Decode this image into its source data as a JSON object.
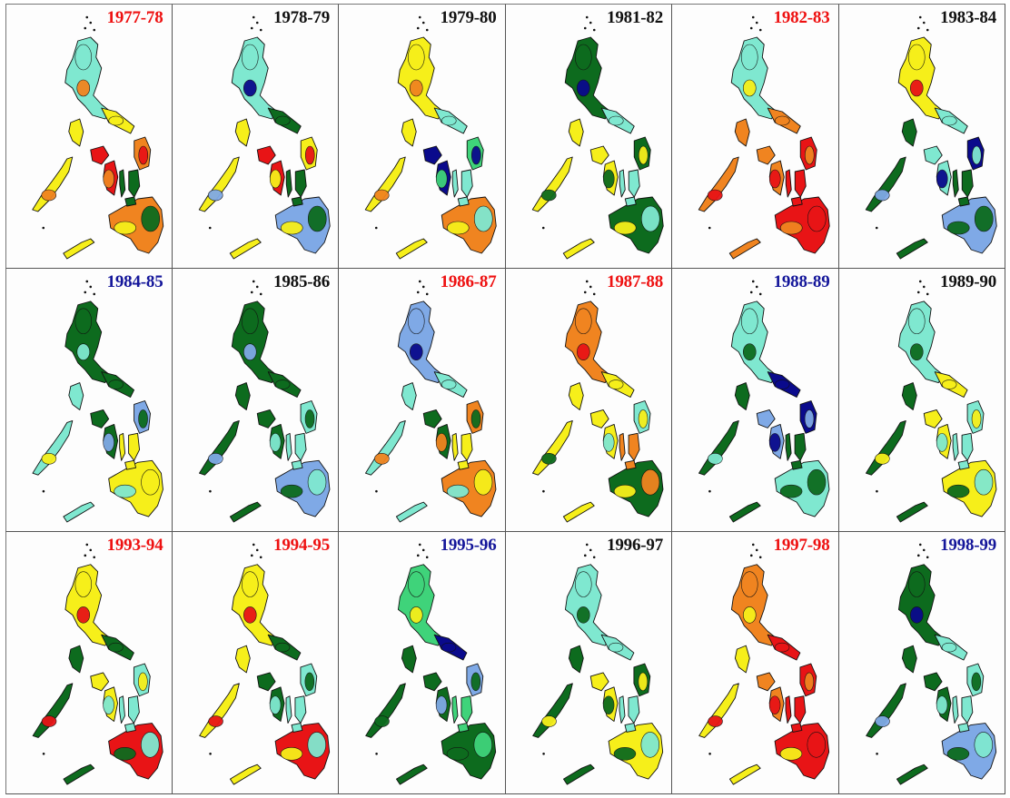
{
  "palette": {
    "dark_blue": "#0a0a8c",
    "light_blue": "#7fa9e6",
    "dark_green": "#0d6b1e",
    "light_green": "#3fd37a",
    "aqua": "#7fe8d0",
    "yellow": "#f6ef1a",
    "orange": "#f08420",
    "red": "#e81416",
    "outline": "#111111"
  },
  "label_colors": {
    "red": "#ee1111",
    "black": "#111111",
    "blue": "#14169a"
  },
  "panels": [
    {
      "year": "1977-78",
      "label_color": "red",
      "colors": [
        "aqua",
        "orange",
        "yellow",
        "orange",
        "red",
        "dark_green",
        "yellow",
        "orange"
      ]
    },
    {
      "year": "1978-79",
      "label_color": "black",
      "colors": [
        "aqua",
        "dark_blue",
        "dark_green",
        "yellow",
        "red",
        "dark_green",
        "yellow",
        "light_blue"
      ]
    },
    {
      "year": "1979-80",
      "label_color": "black",
      "colors": [
        "yellow",
        "orange",
        "aqua",
        "light_green",
        "dark_blue",
        "aqua",
        "yellow",
        "orange"
      ]
    },
    {
      "year": "1981-82",
      "label_color": "black",
      "colors": [
        "dark_green",
        "dark_blue",
        "aqua",
        "dark_green",
        "yellow",
        "aqua",
        "yellow",
        "dark_green"
      ]
    },
    {
      "year": "1982-83",
      "label_color": "red",
      "colors": [
        "aqua",
        "yellow",
        "orange",
        "red",
        "orange",
        "red",
        "orange",
        "red"
      ]
    },
    {
      "year": "1983-84",
      "label_color": "black",
      "colors": [
        "yellow",
        "red",
        "aqua",
        "dark_blue",
        "aqua",
        "dark_green",
        "dark_green",
        "light_blue"
      ]
    },
    {
      "year": "1984-85",
      "label_color": "blue",
      "colors": [
        "dark_green",
        "aqua",
        "dark_green",
        "light_blue",
        "dark_green",
        "yellow",
        "aqua",
        "yellow"
      ]
    },
    {
      "year": "1985-86",
      "label_color": "black",
      "colors": [
        "dark_green",
        "light_blue",
        "dark_green",
        "aqua",
        "dark_green",
        "aqua",
        "dark_green",
        "light_blue"
      ]
    },
    {
      "year": "1986-87",
      "label_color": "red",
      "colors": [
        "light_blue",
        "dark_blue",
        "aqua",
        "orange",
        "dark_green",
        "yellow",
        "aqua",
        "orange"
      ]
    },
    {
      "year": "1987-88",
      "label_color": "red",
      "colors": [
        "orange",
        "red",
        "yellow",
        "aqua",
        "yellow",
        "orange",
        "yellow",
        "dark_green"
      ]
    },
    {
      "year": "1988-89",
      "label_color": "blue",
      "colors": [
        "aqua",
        "dark_green",
        "dark_blue",
        "dark_blue",
        "light_blue",
        "dark_green",
        "dark_green",
        "aqua"
      ]
    },
    {
      "year": "1989-90",
      "label_color": "black",
      "colors": [
        "aqua",
        "dark_green",
        "yellow",
        "aqua",
        "yellow",
        "aqua",
        "dark_green",
        "yellow"
      ]
    },
    {
      "year": "1993-94",
      "label_color": "red",
      "colors": [
        "yellow",
        "red",
        "dark_green",
        "aqua",
        "yellow",
        "aqua",
        "dark_green",
        "red"
      ]
    },
    {
      "year": "1994-95",
      "label_color": "red",
      "colors": [
        "yellow",
        "red",
        "dark_green",
        "aqua",
        "dark_green",
        "aqua",
        "yellow",
        "red"
      ]
    },
    {
      "year": "1995-96",
      "label_color": "blue",
      "colors": [
        "light_green",
        "yellow",
        "dark_blue",
        "light_blue",
        "dark_green",
        "light_green",
        "dark_green",
        "dark_green"
      ]
    },
    {
      "year": "1996-97",
      "label_color": "black",
      "colors": [
        "aqua",
        "dark_green",
        "aqua",
        "dark_green",
        "yellow",
        "aqua",
        "dark_green",
        "yellow"
      ]
    },
    {
      "year": "1997-98",
      "label_color": "red",
      "colors": [
        "orange",
        "yellow",
        "red",
        "red",
        "orange",
        "red",
        "yellow",
        "red"
      ]
    },
    {
      "year": "1998-99",
      "label_color": "blue",
      "colors": [
        "dark_green",
        "dark_blue",
        "aqua",
        "aqua",
        "dark_green",
        "aqua",
        "dark_green",
        "light_blue"
      ]
    }
  ]
}
